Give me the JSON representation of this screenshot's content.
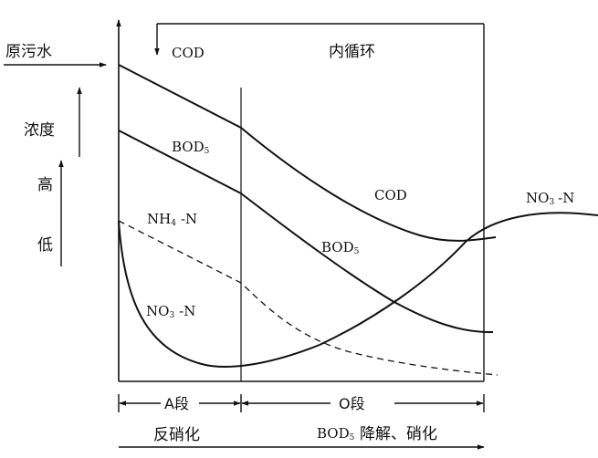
{
  "labels": {
    "raw_water": "原污水",
    "cod_top": "COD",
    "internal_recycle": "内循环",
    "concentration": "浓度",
    "high": "高",
    "low": "低",
    "bod5_left": "BOD",
    "bod5_left_sub": "5",
    "nh4n": "NH",
    "nh4n_sub": "4",
    "nh4n_suffix": "-N",
    "no3n_left": "NO",
    "no3n_left_sub": "3",
    "no3n_left_suffix": "-N",
    "cod_right": "COD",
    "bod5_right": "BOD",
    "bod5_right_sub": "5",
    "no3n_right": "NO",
    "no3n_right_sub": "3",
    "no3n_right_suffix": "-N",
    "a_stage": "A段",
    "o_stage": "O段",
    "denitrification": "反硝化",
    "bod5_bottom": "BOD",
    "bod5_bottom_sub": "5",
    "degradation_nitrification": "降解、硝化"
  }
}
